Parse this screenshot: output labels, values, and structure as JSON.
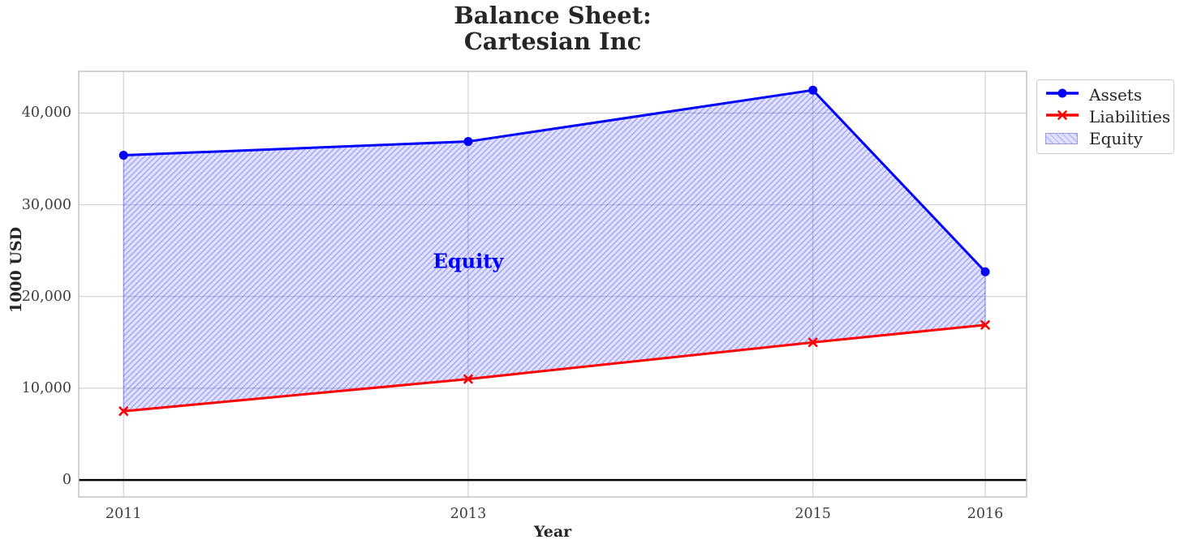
{
  "chart_data": {
    "type": "line",
    "title": "Balance Sheet:\nCartesian Inc",
    "title_lines": [
      "Balance Sheet:",
      "Cartesian Inc"
    ],
    "xlabel": "Year",
    "ylabel": "1000 USD",
    "x": [
      2011,
      2013,
      2015,
      2016
    ],
    "xtick_labels": [
      "2011",
      "2013",
      "2015",
      "2016"
    ],
    "xlim": [
      2010.74,
      2016.24
    ],
    "ylim": [
      -1850,
      44550
    ],
    "ytick_values": [
      0,
      10000,
      20000,
      30000,
      40000
    ],
    "ytick_labels": [
      "0",
      "10,000",
      "20,000",
      "30,000",
      "40,000"
    ],
    "grid": true,
    "series": [
      {
        "name": "Assets",
        "color": "#0000ff",
        "marker": "circle",
        "line_width": 3,
        "values": [
          35400,
          36900,
          42500,
          22700
        ]
      },
      {
        "name": "Liabilities",
        "color": "#ff0000",
        "marker": "x",
        "line_width": 3,
        "values": [
          7500,
          11000,
          15000,
          16900
        ]
      }
    ],
    "fill_between": {
      "label": "Equity",
      "upper_series": "Assets",
      "lower_series": "Liabilities",
      "face_color": "rgba(0,0,255,0.12)",
      "hatch_color": "rgba(0,0,255,0.30)",
      "hatch": "//"
    },
    "annotation": {
      "text": "Equity",
      "x": 2013,
      "y": 23900,
      "color": "#0000ff"
    },
    "zero_line": {
      "y": 0,
      "color": "#000000"
    },
    "legend": {
      "position": "upper-right-outside",
      "entries": [
        "Assets",
        "Liabilities",
        "Equity"
      ]
    },
    "colors": {
      "grid": "#cccccc",
      "frame": "#bfbfbf",
      "title_text": "#262626",
      "tick_text": "#3d3d3d"
    }
  }
}
